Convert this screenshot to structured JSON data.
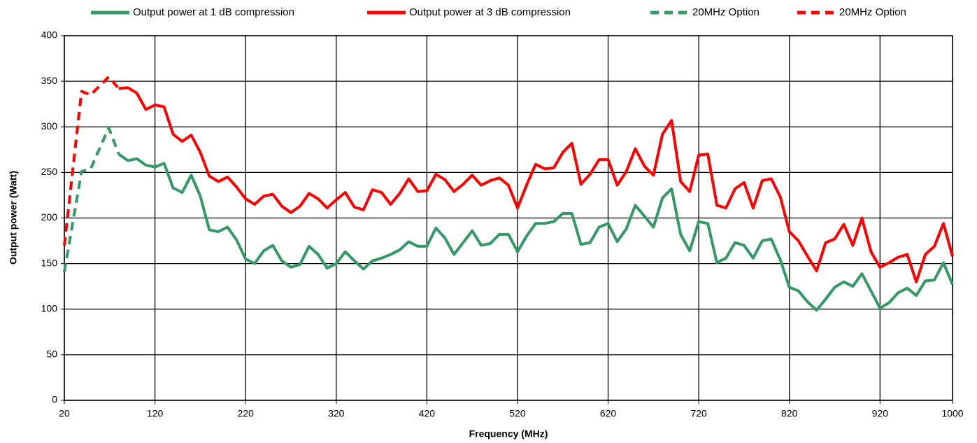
{
  "chart_data": {
    "type": "line",
    "xlabel": "Frequency (MHz)",
    "ylabel": "Output power (Watt)",
    "xlim": [
      20,
      1000
    ],
    "ylim": [
      0,
      400
    ],
    "xticks": [
      20,
      120,
      220,
      320,
      420,
      520,
      620,
      720,
      820,
      920,
      1000
    ],
    "yticks": [
      0,
      50,
      100,
      150,
      200,
      250,
      300,
      350,
      400
    ],
    "grid": true,
    "series": [
      {
        "name": "Output power at 1 dB compression",
        "color": "#339966",
        "dashed": false,
        "x": [
          80,
          90,
          100,
          110,
          120,
          130,
          140,
          150,
          160,
          170,
          180,
          190,
          200,
          210,
          220,
          230,
          240,
          250,
          260,
          270,
          280,
          290,
          300,
          310,
          320,
          330,
          340,
          350,
          360,
          370,
          380,
          390,
          400,
          410,
          420,
          430,
          440,
          450,
          460,
          470,
          480,
          490,
          500,
          510,
          520,
          530,
          540,
          550,
          560,
          570,
          580,
          590,
          600,
          610,
          620,
          630,
          640,
          650,
          660,
          670,
          680,
          690,
          700,
          710,
          720,
          730,
          740,
          750,
          760,
          770,
          780,
          790,
          800,
          810,
          820,
          830,
          840,
          850,
          860,
          870,
          880,
          890,
          900,
          910,
          920,
          930,
          940,
          950,
          960,
          970,
          980,
          990,
          1000
        ],
        "values": [
          270,
          263,
          265,
          258,
          256,
          260,
          233,
          228,
          247,
          224,
          187,
          185,
          190,
          176,
          155,
          150,
          164,
          170,
          153,
          146,
          149,
          169,
          160,
          145,
          150,
          163,
          153,
          144,
          153,
          156,
          160,
          165,
          174,
          169,
          169,
          189,
          178,
          160,
          173,
          186,
          170,
          172,
          182,
          182,
          163,
          180,
          194,
          194,
          196,
          205,
          205,
          171,
          173,
          190,
          194,
          174,
          188,
          214,
          202,
          190,
          222,
          232,
          182,
          164,
          196,
          194,
          151,
          156,
          173,
          170,
          156,
          175,
          177,
          154,
          124,
          120,
          108,
          99,
          111,
          124,
          130,
          125,
          139,
          120,
          101,
          107,
          118,
          123,
          115,
          131,
          132,
          151,
          127
        ]
      },
      {
        "name": "Output power at 3 dB compression",
        "color": "#ff0000",
        "dashed": false,
        "x": [
          80,
          90,
          100,
          110,
          120,
          130,
          140,
          150,
          160,
          170,
          180,
          190,
          200,
          210,
          220,
          230,
          240,
          250,
          260,
          270,
          280,
          290,
          300,
          310,
          320,
          330,
          340,
          350,
          360,
          370,
          380,
          390,
          400,
          410,
          420,
          430,
          440,
          450,
          460,
          470,
          480,
          490,
          500,
          510,
          520,
          530,
          540,
          550,
          560,
          570,
          580,
          590,
          600,
          610,
          620,
          630,
          640,
          650,
          660,
          670,
          680,
          690,
          700,
          710,
          720,
          730,
          740,
          750,
          760,
          770,
          780,
          790,
          800,
          810,
          820,
          830,
          840,
          850,
          860,
          870,
          880,
          890,
          900,
          910,
          920,
          930,
          940,
          950,
          960,
          970,
          980,
          990,
          1000
        ],
        "values": [
          342,
          343,
          337,
          319,
          324,
          322,
          292,
          284,
          291,
          272,
          246,
          240,
          245,
          234,
          221,
          215,
          224,
          226,
          213,
          206,
          213,
          227,
          221,
          211,
          220,
          228,
          212,
          209,
          231,
          228,
          215,
          227,
          243,
          229,
          230,
          248,
          242,
          229,
          237,
          247,
          236,
          241,
          244,
          236,
          211,
          236,
          259,
          254,
          255,
          272,
          282,
          237,
          248,
          264,
          264,
          236,
          251,
          276,
          257,
          247,
          292,
          307,
          240,
          229,
          269,
          270,
          214,
          211,
          232,
          239,
          211,
          241,
          243,
          223,
          185,
          175,
          158,
          142,
          173,
          177,
          193,
          170,
          200,
          163,
          146,
          151,
          157,
          160,
          130,
          160,
          169,
          194,
          158
        ]
      },
      {
        "name": "20MHz Option",
        "color": "#339966",
        "dashed": true,
        "x": [
          20,
          39,
          49,
          69,
          80
        ],
        "values": [
          141,
          251,
          254,
          299,
          270
        ]
      },
      {
        "name": "20MHz Option",
        "color": "#ff0000",
        "dashed": true,
        "x": [
          20,
          39,
          49,
          69,
          80
        ],
        "values": [
          170,
          339,
          335,
          355,
          342
        ]
      }
    ]
  }
}
